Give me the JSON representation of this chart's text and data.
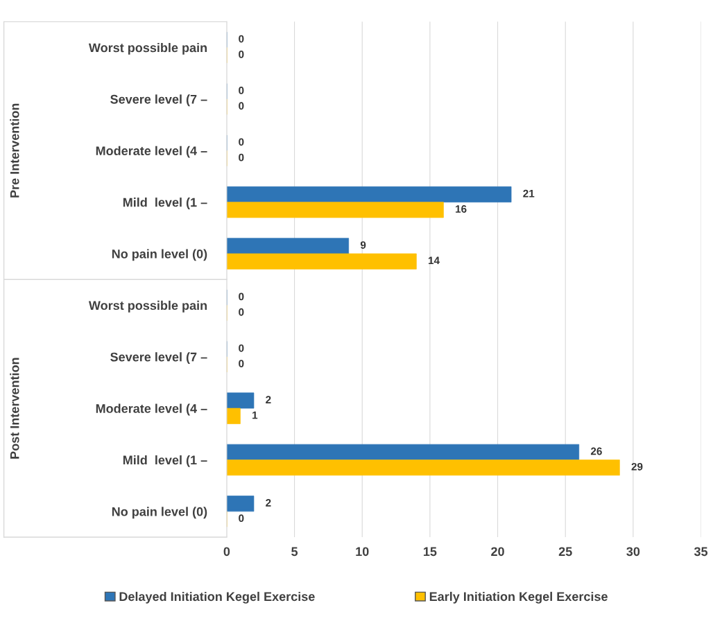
{
  "chart_data": {
    "type": "bar",
    "orientation": "horizontal",
    "categories": [
      "Worst possible pain",
      "Severe level (7 –",
      "Moderate level (4 –",
      "Mild  level (1 –",
      "No pain level (0)",
      "Worst possible pain",
      "Severe level (7 –",
      "Moderate level (4 –",
      "Mild  level (1 –",
      "No pain level (0)"
    ],
    "series": [
      {
        "name": "Delayed Initiation Kegel Exercise",
        "color": "#2e75b6",
        "values": [
          0,
          0,
          0,
          21,
          9,
          0,
          0,
          2,
          26,
          2
        ]
      },
      {
        "name": "Early Initiation Kegel Exercise",
        "color": "#ffc000",
        "values": [
          0,
          0,
          0,
          16,
          14,
          0,
          0,
          1,
          29,
          0
        ]
      }
    ],
    "annotations": [
      "Pre Intervention",
      "Post Intervention"
    ],
    "xlim": [
      0,
      35
    ],
    "xticks": [
      0,
      5,
      10,
      15,
      20,
      25,
      30,
      35
    ],
    "grid": "x",
    "legend": "bottom",
    "data_labels": true
  }
}
